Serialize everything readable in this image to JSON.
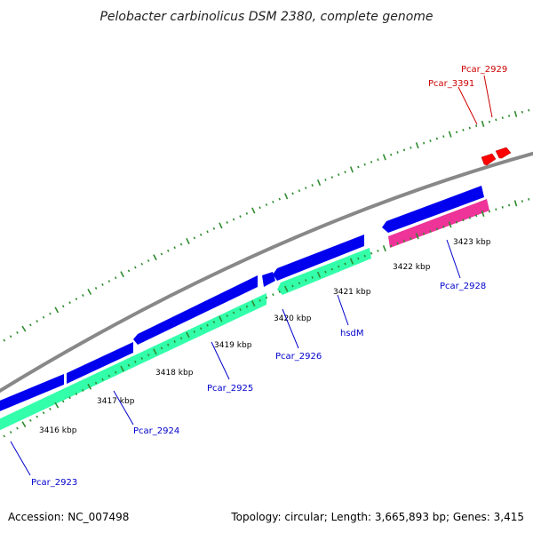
{
  "title": "Pelobacter carbinolicus DSM 2380, complete genome",
  "footer": {
    "accession": "Accession: NC_007498",
    "summary": "Topology: circular; Length: 3,665,893 bp; Genes: 3,415"
  },
  "colors": {
    "backbone": "#888888",
    "tick_green": "#2e8b2e",
    "cds_forward": "#0000ee",
    "cds_reverse": "#33ffaa",
    "pink_feature": "#ee3399",
    "red_feature": "#ff0000",
    "label_blue": "#0000cc",
    "label_red": "#cc0000"
  },
  "scale_labels": [
    {
      "text": "3416 kbp",
      "kbp": 3416
    },
    {
      "text": "3417 kbp",
      "kbp": 3417
    },
    {
      "text": "3418 kbp",
      "kbp": 3418
    },
    {
      "text": "3419 kbp",
      "kbp": 3419
    },
    {
      "text": "3420 kbp",
      "kbp": 3420
    },
    {
      "text": "3421 kbp",
      "kbp": 3421
    },
    {
      "text": "3422 kbp",
      "kbp": 3422
    },
    {
      "text": "3423 kbp",
      "kbp": 3423
    }
  ],
  "gene_labels": [
    {
      "text": "Pcar_2923",
      "color": "blue"
    },
    {
      "text": "Pcar_2924",
      "color": "blue"
    },
    {
      "text": "Pcar_2925",
      "color": "blue"
    },
    {
      "text": "Pcar_2926",
      "color": "blue"
    },
    {
      "text": "hsdM",
      "color": "blue"
    },
    {
      "text": "Pcar_2928",
      "color": "blue"
    },
    {
      "text": "Pcar_3391",
      "color": "red"
    },
    {
      "text": "Pcar_2929",
      "color": "red"
    }
  ]
}
